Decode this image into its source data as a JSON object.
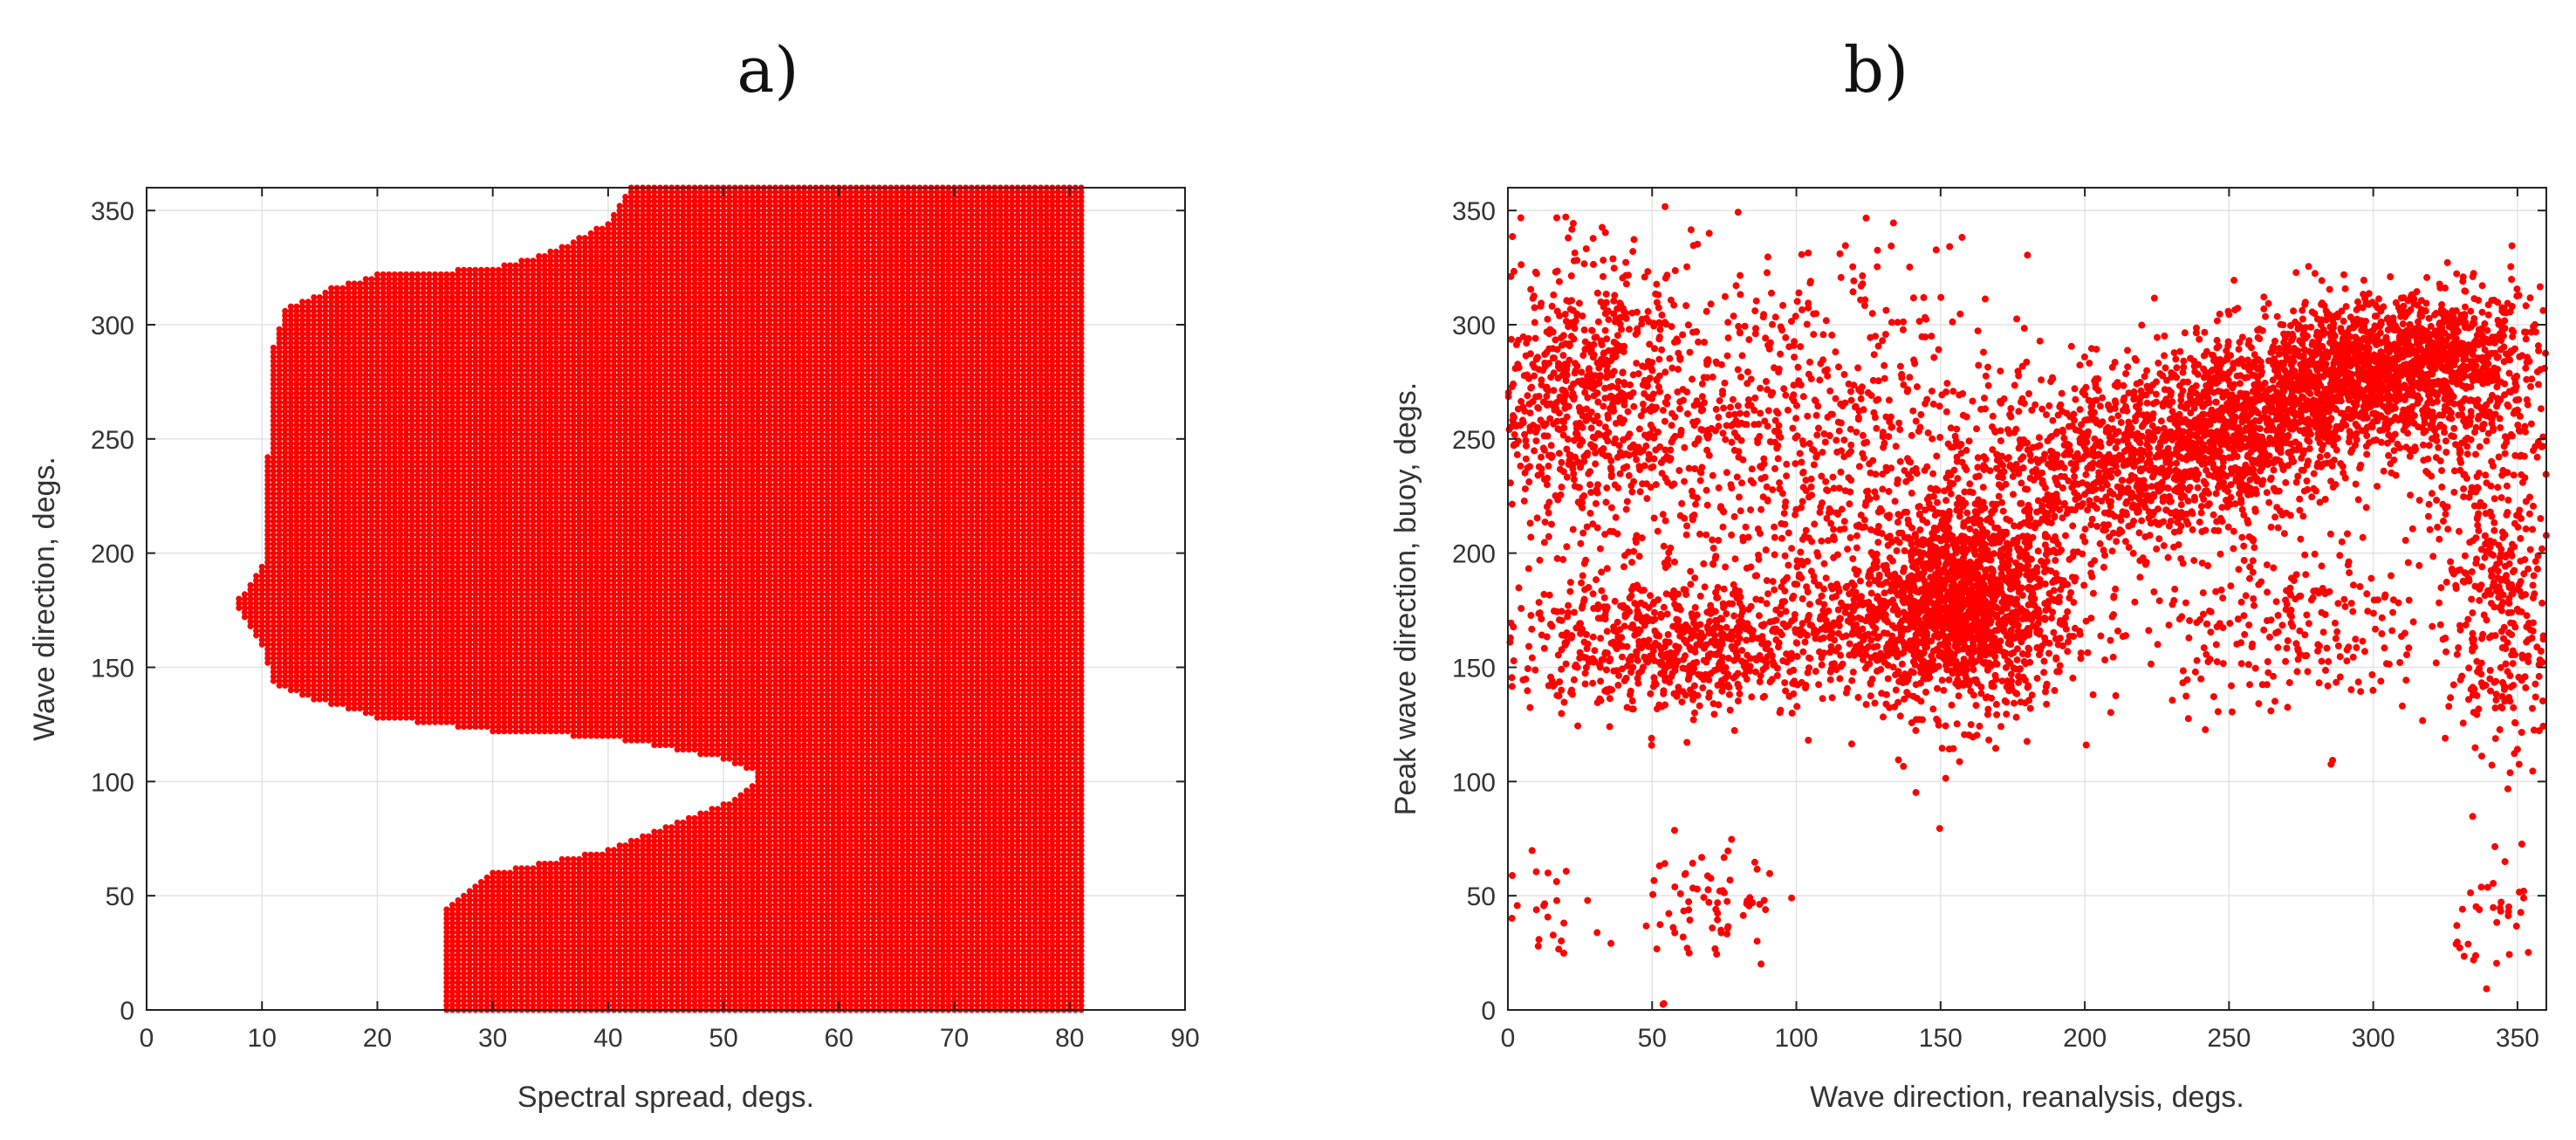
{
  "chart_data": [
    {
      "id": "a",
      "panel_label": "a)",
      "type": "scatter",
      "xlabel": "Spectral spread, degs.",
      "ylabel": "Wave direction, degs.",
      "xlim": [
        0,
        90
      ],
      "ylim": [
        0,
        360
      ],
      "xticks": [
        0,
        10,
        20,
        30,
        40,
        50,
        60,
        70,
        80,
        90
      ],
      "yticks": [
        0,
        50,
        100,
        150,
        200,
        250,
        300,
        350
      ],
      "grid": true,
      "marker_color": "#ff0000",
      "grid_spacing": {
        "x": 0.5,
        "y": 2
      },
      "x_max": 81,
      "envelope_upper": [
        {
          "x": 8,
          "y": 180
        },
        {
          "x": 10,
          "y": 195
        },
        {
          "x": 11,
          "y": 290
        },
        {
          "x": 12,
          "y": 307
        },
        {
          "x": 16,
          "y": 316
        },
        {
          "x": 20,
          "y": 322
        },
        {
          "x": 30,
          "y": 325
        },
        {
          "x": 35,
          "y": 332
        },
        {
          "x": 40,
          "y": 345
        },
        {
          "x": 42,
          "y": 360
        },
        {
          "x": 81,
          "y": 360
        }
      ],
      "envelope_lower_top": [
        {
          "x": 8,
          "y": 175
        },
        {
          "x": 10,
          "y": 160
        },
        {
          "x": 11,
          "y": 143
        },
        {
          "x": 15,
          "y": 135
        },
        {
          "x": 20,
          "y": 128
        },
        {
          "x": 30,
          "y": 122
        },
        {
          "x": 40,
          "y": 119
        },
        {
          "x": 45,
          "y": 115
        },
        {
          "x": 50,
          "y": 110
        },
        {
          "x": 53,
          "y": 103
        }
      ],
      "envelope_upper_bottom": [
        {
          "x": 26,
          "y": 45
        },
        {
          "x": 30,
          "y": 60
        },
        {
          "x": 35,
          "y": 65
        },
        {
          "x": 40,
          "y": 70
        },
        {
          "x": 45,
          "y": 80
        },
        {
          "x": 50,
          "y": 90
        },
        {
          "x": 53,
          "y": 100
        }
      ]
    },
    {
      "id": "b",
      "panel_label": "b)",
      "type": "scatter",
      "xlabel": "Wave direction, reanalysis, degs.",
      "ylabel": "Peak wave direction, buoy, degs.",
      "xlim": [
        0,
        360
      ],
      "ylim": [
        0,
        360
      ],
      "xticks": [
        0,
        50,
        100,
        150,
        200,
        250,
        300,
        350
      ],
      "yticks": [
        0,
        50,
        100,
        150,
        200,
        250,
        300,
        350
      ],
      "grid": true,
      "marker_color": "#ff0000",
      "clusters": [
        {
          "cx": 160,
          "cy": 180,
          "sx": 18,
          "sy": 25,
          "n": 1300
        },
        {
          "cx": 140,
          "cy": 170,
          "sx": 25,
          "sy": 15,
          "n": 500
        },
        {
          "cx": 215,
          "cy": 240,
          "sx": 25,
          "sy": 20,
          "n": 900
        },
        {
          "cx": 260,
          "cy": 260,
          "sx": 20,
          "sy": 18,
          "n": 900
        },
        {
          "cx": 300,
          "cy": 280,
          "sx": 18,
          "sy": 15,
          "n": 1000
        },
        {
          "cx": 330,
          "cy": 285,
          "sx": 15,
          "sy": 15,
          "n": 400
        },
        {
          "cx": 60,
          "cy": 160,
          "sx": 30,
          "sy": 15,
          "n": 700
        },
        {
          "cx": 25,
          "cy": 270,
          "sx": 20,
          "sy": 30,
          "n": 700
        },
        {
          "cx": 100,
          "cy": 250,
          "sx": 40,
          "sy": 40,
          "n": 800
        },
        {
          "cx": 345,
          "cy": 160,
          "sx": 10,
          "sy": 25,
          "n": 200
        },
        {
          "cx": 340,
          "cy": 230,
          "sx": 12,
          "sy": 40,
          "n": 300
        },
        {
          "cx": 270,
          "cy": 170,
          "sx": 25,
          "sy": 20,
          "n": 250
        },
        {
          "cx": 70,
          "cy": 45,
          "sx": 12,
          "sy": 18,
          "n": 70
        },
        {
          "cx": 345,
          "cy": 40,
          "sx": 8,
          "sy": 12,
          "n": 35
        },
        {
          "cx": 15,
          "cy": 40,
          "sx": 10,
          "sy": 12,
          "n": 25
        }
      ]
    }
  ]
}
